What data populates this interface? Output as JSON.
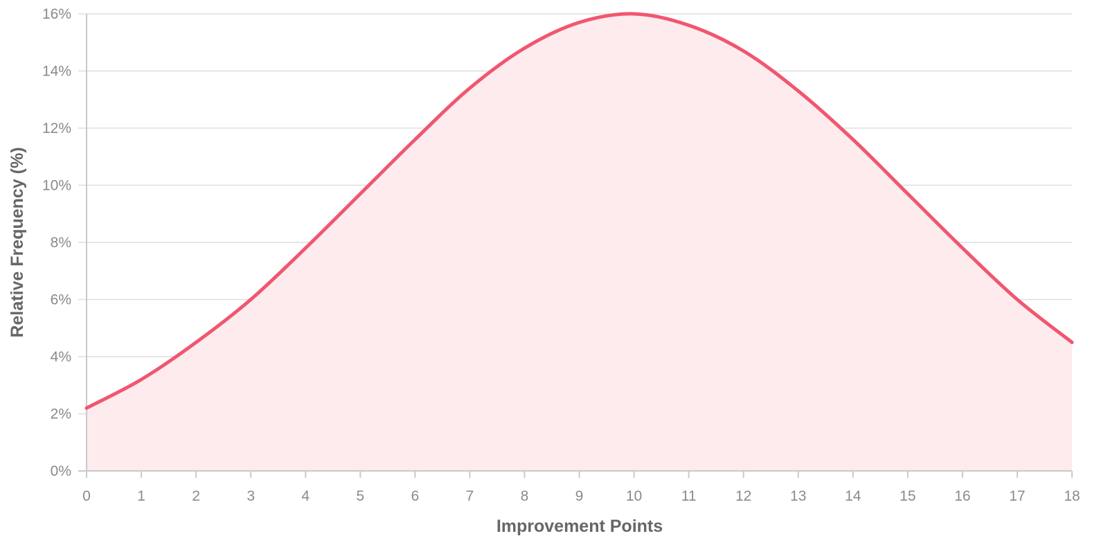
{
  "chart_data": {
    "type": "area",
    "xlabel": "Improvement Points",
    "ylabel": "Relative Frequency (%)",
    "x": [
      0,
      1,
      2,
      3,
      4,
      5,
      6,
      7,
      8,
      9,
      10,
      11,
      12,
      13,
      14,
      15,
      16,
      17,
      18
    ],
    "series": [
      {
        "values": [
          2.2,
          3.2,
          4.5,
          6.0,
          7.8,
          9.7,
          11.6,
          13.4,
          14.8,
          15.7,
          16.0,
          15.6,
          14.7,
          13.3,
          11.6,
          9.7,
          7.8,
          6.0,
          4.5
        ]
      }
    ],
    "xlim": [
      0,
      18
    ],
    "ylim": [
      0,
      16
    ],
    "y_ticks": [
      0,
      2,
      4,
      6,
      8,
      10,
      12,
      14,
      16
    ],
    "y_tick_suffix": "%",
    "grid": true,
    "legend": "none",
    "colors": {
      "line": "#f0576f",
      "fill": "#fdebee",
      "grid": "#dedede",
      "axis": "#c9c9c9",
      "tick_text": "#8a8a8a",
      "title_text": "#666666"
    }
  }
}
